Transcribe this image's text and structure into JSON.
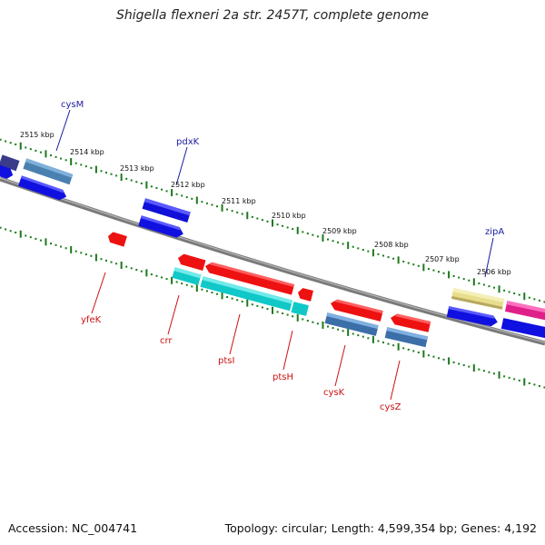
{
  "title": "Shigella flexneri 2a str. 2457T, complete genome",
  "footer": {
    "accession": "Accession: NC_004741",
    "topology": "Topology: circular; Length: 4,599,354 bp; Genes: 4,192"
  },
  "colors": {
    "backbone": "#808080",
    "tick": "#1a7a1a",
    "forward_label": "#1a1aa0",
    "reverse_label": "#cc1111"
  },
  "scale_labels": [
    "2515 kbp",
    "2514 kbp",
    "2513 kbp",
    "2512 kbp",
    "2511 kbp",
    "2510 kbp",
    "2509 kbp",
    "2508 kbp",
    "2507 kbp",
    "2506 kbp"
  ],
  "forward_gene_labels": [
    "cysM",
    "pdxK",
    "zipA"
  ],
  "reverse_gene_labels": [
    "yfeK",
    "crr",
    "ptsI",
    "ptsH",
    "cysK",
    "cysZ"
  ]
}
